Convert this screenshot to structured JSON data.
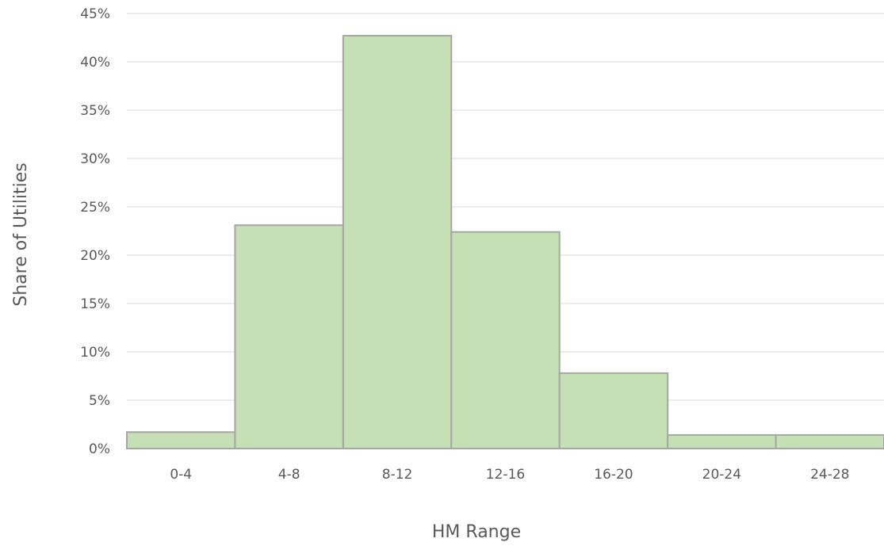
{
  "chart_data": {
    "type": "bar",
    "title": "",
    "xlabel": "HM Range",
    "ylabel": "Share of Utilities",
    "categories": [
      "0-4",
      "4-8",
      "8-12",
      "12-16",
      "16-20",
      "20-24",
      "24-28"
    ],
    "values": [
      1.7,
      23.1,
      42.7,
      22.4,
      7.8,
      1.4,
      1.4
    ],
    "ylim": [
      0,
      45
    ],
    "yticks": [
      0,
      5,
      10,
      15,
      20,
      25,
      30,
      35,
      40,
      45
    ],
    "ytick_labels": [
      "0%",
      "5%",
      "10%",
      "15%",
      "20%",
      "25%",
      "30%",
      "35%",
      "40%",
      "45%"
    ],
    "grid": true,
    "legend": "none",
    "bar_color": "#c5e0b4",
    "bar_edge_color": "#a6a6a6",
    "grid_color": "#d9d9d9",
    "text_color": "#595959"
  }
}
